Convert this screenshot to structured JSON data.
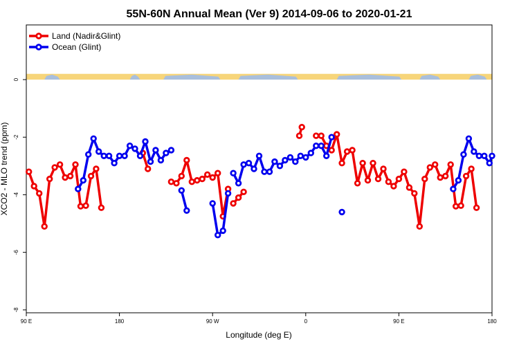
{
  "chart_data": {
    "type": "line",
    "title": "55N-60N Annual Mean (Ver 9)   2014-09-06 to 2020-01-21",
    "xlabel": "Longitude (deg E)",
    "ylabel": "XCO2 - MLO trend (ppm)",
    "xlim": [
      90,
      450
    ],
    "ylim": [
      -8.1,
      1.9
    ],
    "x_ticks": [
      {
        "value": 90,
        "label": "90 E"
      },
      {
        "value": 162,
        "label": "180"
      },
      {
        "value": 234,
        "label": "90 W"
      },
      {
        "value": 306,
        "label": "0"
      },
      {
        "value": 378,
        "label": "90 E"
      },
      {
        "value": 450,
        "label": "180"
      }
    ],
    "y_ticks": [
      {
        "value": 0,
        "label": "0"
      },
      {
        "value": -2,
        "label": "-2"
      },
      {
        "value": -4,
        "label": "-4"
      },
      {
        "value": -6,
        "label": "-6"
      },
      {
        "value": -8,
        "label": "-8"
      }
    ],
    "grid": false,
    "legend_position": "top-left",
    "land_band": {
      "y_top": 0.2,
      "y_bottom": 0.0,
      "color_land": "#f7d57a",
      "color_ocean": "#a9bfdc"
    },
    "series": [
      {
        "name": "Land (Nadir&Glint)",
        "color": "#ee0000",
        "segments": [
          [
            [
              92,
              -3.2
            ],
            [
              96,
              -3.7
            ],
            [
              100,
              -3.95
            ],
            [
              104,
              -5.1
            ],
            [
              108,
              -3.45
            ],
            [
              112,
              -3.05
            ],
            [
              116,
              -2.95
            ],
            [
              120,
              -3.4
            ],
            [
              124,
              -3.35
            ],
            [
              128,
              -2.95
            ],
            [
              132,
              -4.4
            ],
            [
              136,
              -4.38
            ],
            [
              140,
              -3.35
            ],
            [
              144,
              -3.1
            ],
            [
              148,
              -4.45
            ]
          ],
          [
            [
              180,
              -2.55
            ],
            [
              184,
              -3.1
            ]
          ],
          [
            [
              202,
              -3.55
            ],
            [
              206,
              -3.6
            ],
            [
              210,
              -3.35
            ],
            [
              214,
              -2.8
            ],
            [
              218,
              -3.55
            ],
            [
              222,
              -3.5
            ],
            [
              226,
              -3.45
            ],
            [
              230,
              -3.3
            ],
            [
              234,
              -3.4
            ],
            [
              238,
              -3.25
            ],
            [
              242,
              -4.75
            ],
            [
              246,
              -3.8
            ]
          ],
          [
            [
              250,
              -4.3
            ],
            [
              254,
              -4.1
            ],
            [
              258,
              -3.9
            ]
          ],
          [
            [
              301,
              -1.95
            ],
            [
              303,
              -1.65
            ]
          ],
          [
            [
              314,
              -1.95
            ],
            [
              318,
              -1.95
            ],
            [
              322,
              -2.3
            ],
            [
              326,
              -2.45
            ],
            [
              330,
              -1.9
            ],
            [
              334,
              -2.9
            ],
            [
              338,
              -2.5
            ],
            [
              342,
              -2.45
            ],
            [
              346,
              -3.6
            ],
            [
              350,
              -2.9
            ],
            [
              354,
              -3.5
            ],
            [
              358,
              -2.9
            ],
            [
              362,
              -3.45
            ],
            [
              366,
              -3.1
            ],
            [
              370,
              -3.55
            ],
            [
              374,
              -3.7
            ],
            [
              378,
              -3.45
            ],
            [
              382,
              -3.2
            ],
            [
              386,
              -3.75
            ],
            [
              390,
              -3.95
            ],
            [
              394,
              -5.1
            ],
            [
              398,
              -3.45
            ],
            [
              402,
              -3.05
            ],
            [
              406,
              -2.95
            ],
            [
              410,
              -3.4
            ],
            [
              414,
              -3.35
            ],
            [
              418,
              -2.95
            ],
            [
              422,
              -4.4
            ],
            [
              426,
              -4.38
            ],
            [
              430,
              -3.35
            ],
            [
              434,
              -3.1
            ],
            [
              438,
              -4.45
            ]
          ]
        ]
      },
      {
        "name": "Ocean (Glint)",
        "color": "#0000ee",
        "segments": [
          [
            [
              130,
              -3.8
            ],
            [
              134,
              -3.5
            ],
            [
              138,
              -2.6
            ],
            [
              142,
              -2.05
            ],
            [
              146,
              -2.5
            ],
            [
              150,
              -2.65
            ],
            [
              154,
              -2.65
            ],
            [
              158,
              -2.9
            ],
            [
              162,
              -2.65
            ],
            [
              166,
              -2.65
            ],
            [
              170,
              -2.3
            ],
            [
              174,
              -2.4
            ],
            [
              178,
              -2.65
            ],
            [
              182,
              -2.15
            ],
            [
              186,
              -2.85
            ],
            [
              190,
              -2.45
            ],
            [
              194,
              -2.8
            ],
            [
              198,
              -2.55
            ],
            [
              202,
              -2.45
            ]
          ],
          [
            [
              210,
              -3.85
            ],
            [
              214,
              -4.55
            ]
          ],
          [
            [
              234,
              -4.3
            ],
            [
              238,
              -5.4
            ],
            [
              242,
              -5.25
            ],
            [
              246,
              -3.95
            ]
          ],
          [
            [
              250,
              -3.25
            ],
            [
              254,
              -3.6
            ],
            [
              258,
              -2.95
            ],
            [
              262,
              -2.9
            ],
            [
              266,
              -3.1
            ],
            [
              270,
              -2.65
            ],
            [
              274,
              -3.2
            ],
            [
              278,
              -3.2
            ],
            [
              282,
              -2.85
            ],
            [
              286,
              -3.0
            ],
            [
              290,
              -2.8
            ],
            [
              294,
              -2.7
            ],
            [
              298,
              -2.85
            ],
            [
              302,
              -2.65
            ],
            [
              306,
              -2.7
            ],
            [
              310,
              -2.55
            ],
            [
              314,
              -2.3
            ],
            [
              318,
              -2.3
            ],
            [
              322,
              -2.65
            ],
            [
              326,
              -2.0
            ]
          ],
          [
            [
              334,
              -4.6
            ]
          ],
          [
            [
              420,
              -3.8
            ],
            [
              424,
              -3.5
            ],
            [
              428,
              -2.6
            ],
            [
              432,
              -2.05
            ],
            [
              436,
              -2.5
            ],
            [
              440,
              -2.65
            ],
            [
              444,
              -2.65
            ],
            [
              448,
              -2.9
            ],
            [
              450,
              -2.65
            ]
          ]
        ]
      }
    ]
  }
}
